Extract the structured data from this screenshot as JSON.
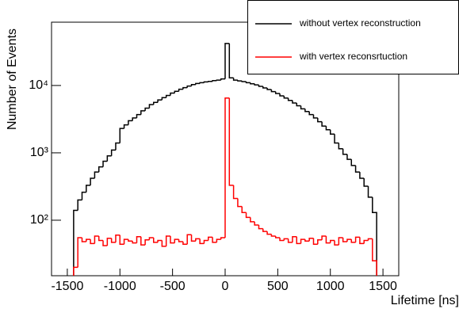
{
  "chart_data": {
    "type": "histogram",
    "x_label": "Lifetime [ns]",
    "y_label": "Number of Events",
    "bins": [
      -1440,
      -1400,
      -1360,
      -1320,
      -1280,
      -1240,
      -1200,
      -1160,
      -1120,
      -1080,
      -1040,
      -1000,
      -960,
      -920,
      -880,
      -840,
      -800,
      -760,
      -720,
      -680,
      -640,
      -600,
      -560,
      -520,
      -480,
      -440,
      -400,
      -360,
      -320,
      -280,
      -240,
      -200,
      -160,
      -120,
      -80,
      -40,
      0,
      40,
      80,
      120,
      160,
      200,
      240,
      280,
      320,
      360,
      400,
      440,
      480,
      520,
      560,
      600,
      640,
      680,
      720,
      760,
      800,
      840,
      880,
      920,
      960,
      1000,
      1040,
      1080,
      1120,
      1160,
      1200,
      1240,
      1280,
      1320,
      1360,
      1400,
      1440
    ],
    "series": [
      {
        "name": "without vertex reconstruction",
        "color": "#000000",
        "values": [
          140,
          200,
          260,
          330,
          420,
          520,
          620,
          750,
          900,
          1100,
          1400,
          2300,
          2600,
          3000,
          3300,
          3700,
          4200,
          4600,
          5200,
          5600,
          6100,
          6600,
          7100,
          7700,
          8200,
          8800,
          9300,
          9800,
          10300,
          10700,
          11000,
          11300,
          11500,
          11800,
          12000,
          12500,
          42000,
          13000,
          12000,
          11700,
          11400,
          11000,
          10600,
          10200,
          9700,
          9200,
          8700,
          8100,
          7600,
          7000,
          6500,
          6000,
          5500,
          5000,
          4500,
          4100,
          3700,
          3300,
          2900,
          2500,
          2200,
          1900,
          1400,
          1150,
          950,
          800,
          650,
          520,
          420,
          320,
          220,
          130
        ]
      },
      {
        "name": "with vertex reconsrtuction",
        "color": "#ff0000",
        "values": [
          20,
          55,
          48,
          52,
          45,
          58,
          50,
          42,
          54,
          47,
          60,
          44,
          52,
          49,
          46,
          57,
          43,
          51,
          55,
          47,
          50,
          41,
          58,
          46,
          52,
          48,
          44,
          61,
          49,
          53,
          45,
          50,
          56,
          47,
          52,
          55,
          6500,
          330,
          210,
          160,
          130,
          110,
          95,
          85,
          75,
          68,
          62,
          58,
          55,
          50,
          53,
          47,
          57,
          45,
          52,
          49,
          54,
          44,
          51,
          58,
          46,
          50,
          43,
          55,
          48,
          52,
          47,
          56,
          45,
          50,
          53,
          25
        ]
      }
    ],
    "xlim": [
      -1650,
      1650
    ],
    "xticks": [
      -1500,
      -1000,
      -500,
      0,
      500,
      1000,
      1500
    ],
    "ylim": [
      15,
      87000
    ],
    "log_y": true,
    "yticks": [
      {
        "value": 100,
        "label": "10²"
      },
      {
        "value": 1000,
        "label": "10³"
      },
      {
        "value": 10000,
        "label": "10⁴"
      }
    ],
    "legend": "top-right"
  }
}
